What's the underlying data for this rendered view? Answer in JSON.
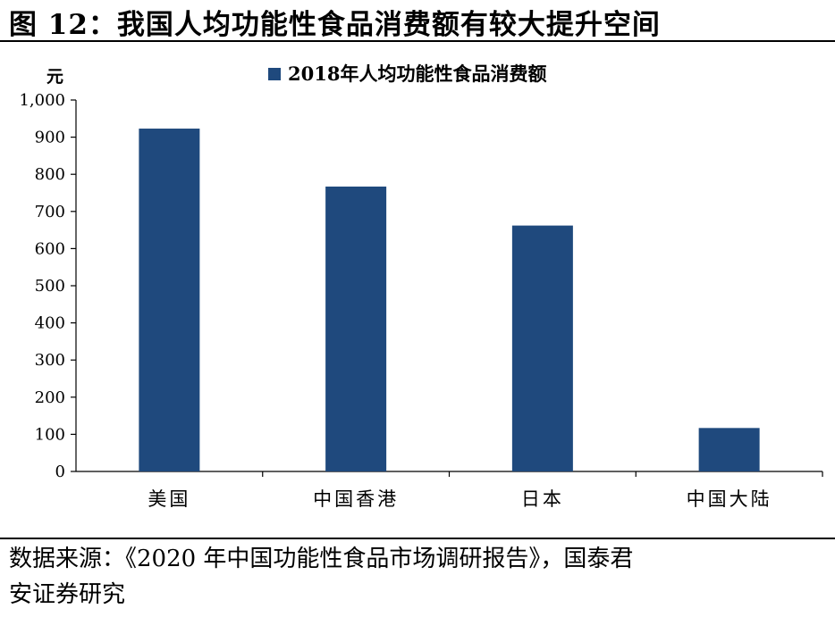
{
  "figure_title": "图 12：我国人均功能性食品消费额有较大提升空间",
  "source_line1": "数据来源：《2020 年中国功能性食品市场调研报告》，国泰君",
  "source_line2": "安证券研究",
  "colors": {
    "bar": "#1f497d",
    "axis": "#000000"
  },
  "chart_data": {
    "type": "bar",
    "title": "",
    "ylabel": "元",
    "xlabel": "",
    "categories": [
      "美国",
      "中国香港",
      "日本",
      "中国大陆"
    ],
    "series": [
      {
        "name": "2018年人均功能性食品消费额",
        "values": [
          923,
          767,
          662,
          117
        ]
      }
    ],
    "ylim": [
      0,
      1000
    ],
    "yticks": [
      0,
      100,
      200,
      300,
      400,
      500,
      600,
      700,
      800,
      900,
      1000
    ],
    "ytick_labels": [
      "0",
      "100",
      "200",
      "300",
      "400",
      "500",
      "600",
      "700",
      "800",
      "900",
      "1,000"
    ],
    "grid": false,
    "legend_position": "top-center"
  }
}
